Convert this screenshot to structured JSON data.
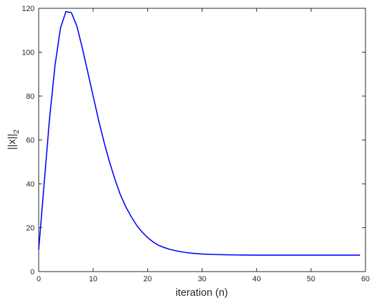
{
  "chart_data": {
    "type": "line",
    "xlabel": "iteration (n)",
    "ylabel": "||x||",
    "ylabel_subscript": "2",
    "xlim": [
      0,
      60
    ],
    "ylim": [
      0,
      120
    ],
    "x_ticks": [
      "0",
      "10",
      "20",
      "30",
      "40",
      "50",
      "60"
    ],
    "y_ticks": [
      "0",
      "20",
      "40",
      "60",
      "80",
      "100",
      "120"
    ],
    "grid": false,
    "line_color": "#0000ff",
    "x": [
      0,
      1,
      2,
      3,
      4,
      5,
      6,
      7,
      8,
      9,
      10,
      11,
      12,
      13,
      14,
      15,
      16,
      17,
      18,
      19,
      20,
      21,
      22,
      23,
      24,
      25,
      26,
      27,
      28,
      29,
      30,
      32,
      34,
      36,
      38,
      40,
      45,
      50,
      55,
      59
    ],
    "y": [
      10,
      40,
      70,
      94,
      111,
      118.5,
      118,
      112,
      102,
      91,
      80,
      69,
      59,
      50,
      42,
      35,
      29.5,
      25,
      21,
      18,
      15.5,
      13.5,
      12,
      11,
      10.2,
      9.6,
      9.1,
      8.7,
      8.4,
      8.2,
      8.0,
      7.8,
      7.7,
      7.6,
      7.55,
      7.5,
      7.5,
      7.5,
      7.5,
      7.5
    ]
  }
}
